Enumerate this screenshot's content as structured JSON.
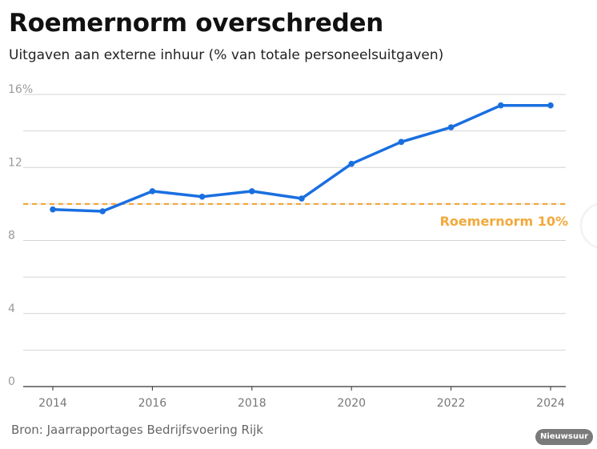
{
  "header": {
    "title": "Roemernorm overschreden",
    "subtitle": "Uitgaven aan externe inhuur (% van totale personeelsuitgaven)"
  },
  "footer": {
    "source": "Bron: Jaarrapportages Bedrijfsvoering Rijk",
    "brand": "Nieuwsuur"
  },
  "colors": {
    "series": "#1a6fe0",
    "reference": "#f2a93b",
    "grid": "#d4d4d4",
    "tick_label": "#9a9a9a",
    "axis": "#333333"
  },
  "chart_data": {
    "type": "line",
    "title": "Roemernorm overschreden",
    "subtitle": "Uitgaven aan externe inhuur (% van totale personeelsuitgaven)",
    "xlabel": "",
    "ylabel": "",
    "x": [
      2014,
      2015,
      2016,
      2017,
      2018,
      2019,
      2020,
      2021,
      2022,
      2023,
      2024
    ],
    "series": [
      {
        "values": [
          9.7,
          9.6,
          10.7,
          10.4,
          10.7,
          10.3,
          12.2,
          13.4,
          14.2,
          15.4,
          15.4
        ]
      }
    ],
    "xlim": [
      2013.5,
      2024.3
    ],
    "ylim": [
      0,
      16
    ],
    "y_ticks": [
      0,
      2,
      4,
      6,
      8,
      10,
      12,
      14,
      16
    ],
    "y_tick_labels": [
      "0",
      "",
      "4",
      "",
      "8",
      "",
      "12",
      "",
      "16%"
    ],
    "x_ticks": [
      2014,
      2016,
      2018,
      2020,
      2022,
      2024
    ],
    "x_tick_labels": [
      "2014",
      "2016",
      "2018",
      "2020",
      "2022",
      "2024"
    ],
    "reference_line": {
      "value": 10,
      "label": "Roemernorm 10%"
    },
    "grid": true,
    "legend": "none"
  }
}
